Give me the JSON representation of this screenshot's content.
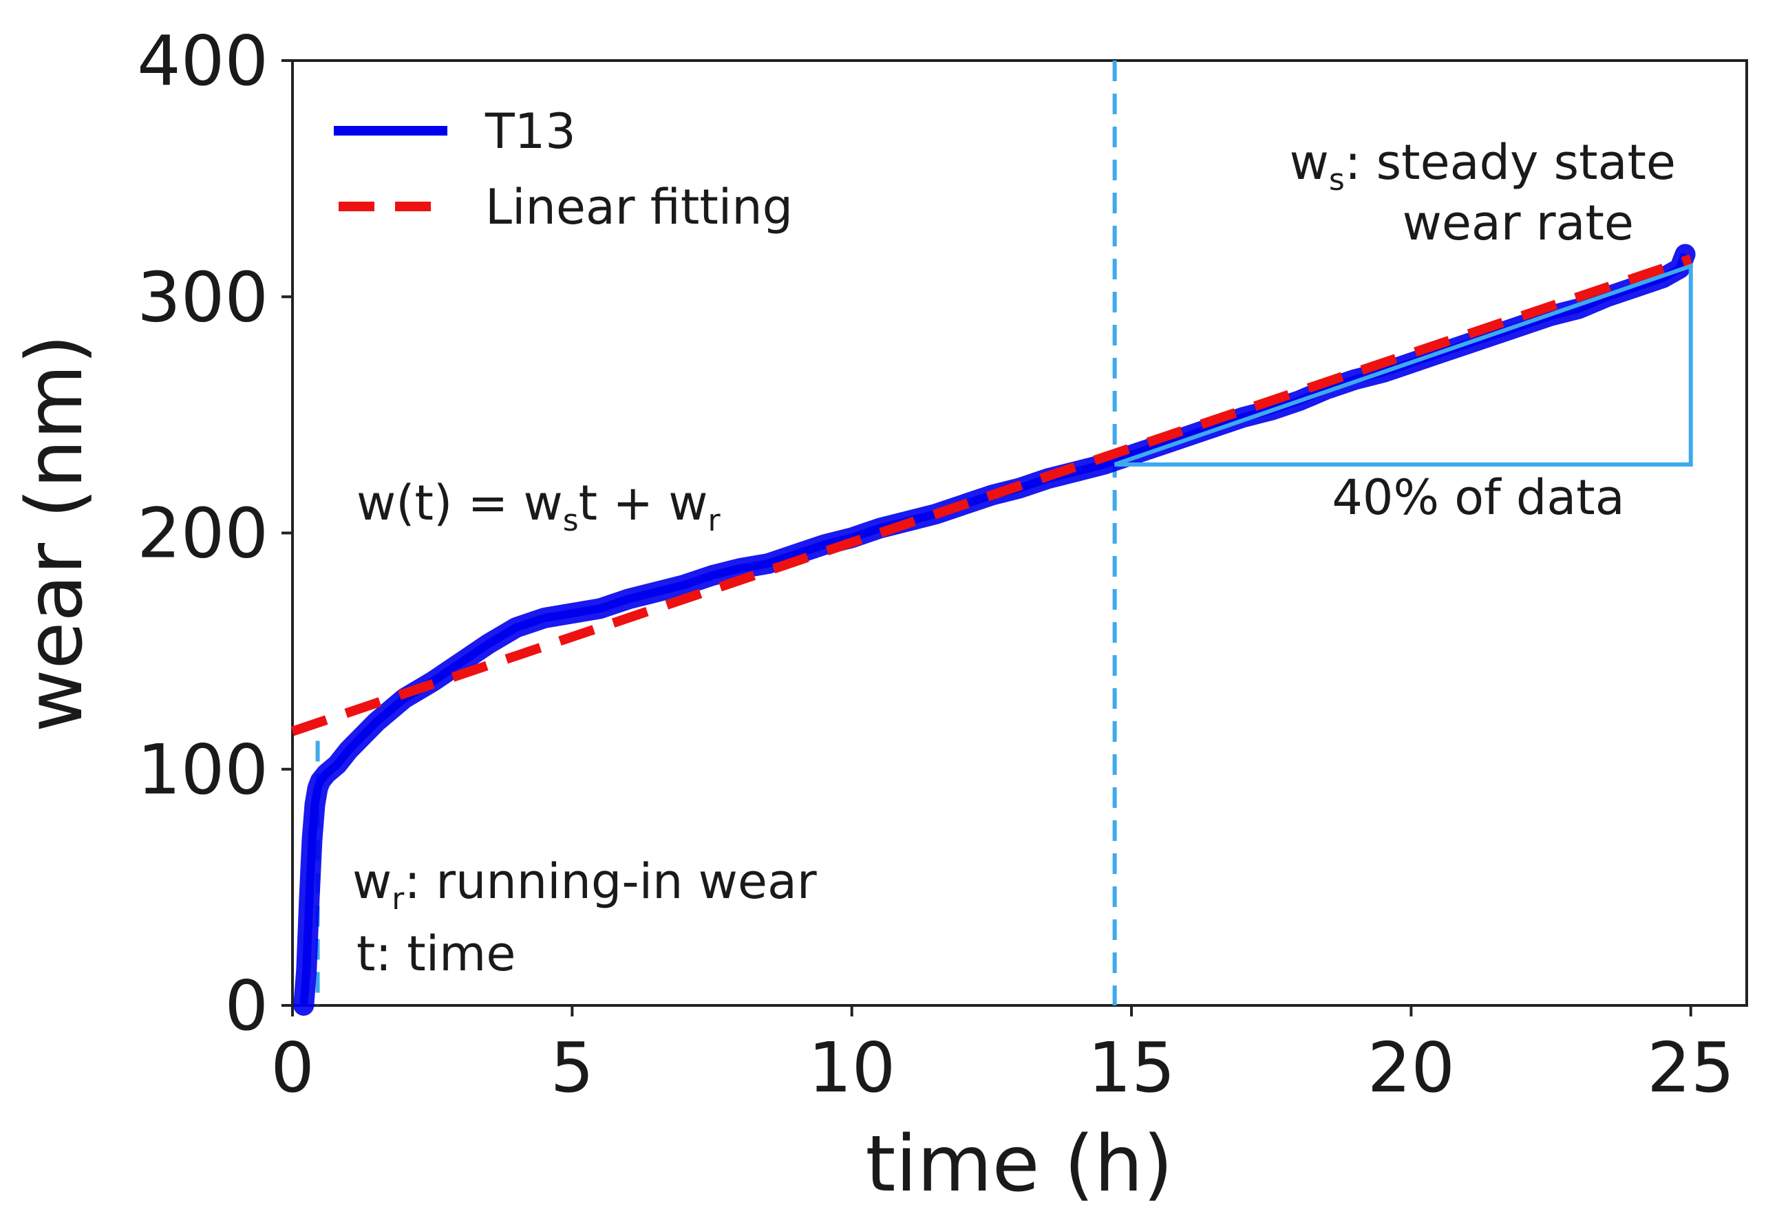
{
  "chart_data": {
    "type": "line",
    "xlabel": "time (h)",
    "ylabel": "wear (nm)",
    "xlim": [
      0,
      26
    ],
    "ylim": [
      0,
      400
    ],
    "x_ticks": [
      0,
      5,
      10,
      15,
      20,
      25
    ],
    "y_ticks": [
      0,
      100,
      200,
      300,
      400
    ],
    "grid": false,
    "legend_position": "top-left",
    "series": [
      {
        "name": "T13",
        "style": "solid",
        "color": "#0000ee",
        "x": [
          0.2,
          0.25,
          0.3,
          0.35,
          0.4,
          0.45,
          0.5,
          0.6,
          0.8,
          1.0,
          1.5,
          2.0,
          2.5,
          3.0,
          3.5,
          4.0,
          4.5,
          5.0,
          5.5,
          6.0,
          6.5,
          7.0,
          7.5,
          8.0,
          8.5,
          9.0,
          9.5,
          10.0,
          10.5,
          11.0,
          11.5,
          12.0,
          12.5,
          13.0,
          13.5,
          14.0,
          14.5,
          15.0,
          15.5,
          16.0,
          16.5,
          17.0,
          17.5,
          18.0,
          18.5,
          19.0,
          19.5,
          20.0,
          20.5,
          21.0,
          21.5,
          22.0,
          22.5,
          23.0,
          23.5,
          24.0,
          24.5,
          24.8,
          24.9
        ],
        "y": [
          0,
          15,
          45,
          70,
          85,
          92,
          95,
          98,
          102,
          108,
          120,
          130,
          137,
          145,
          153,
          160,
          164,
          166,
          168,
          172,
          175,
          178,
          182,
          185,
          187,
          191,
          195,
          198,
          202,
          205,
          208,
          212,
          216,
          219,
          223,
          226,
          229,
          233,
          237,
          241,
          245,
          249,
          252,
          256,
          261,
          265,
          268,
          272,
          276,
          280,
          284,
          288,
          292,
          295,
          300,
          304,
          308,
          312,
          318
        ]
      },
      {
        "name": "Linear fitting",
        "style": "dashed",
        "color": "#ee1111",
        "x": [
          0,
          25
        ],
        "y": [
          116,
          316
        ]
      }
    ],
    "guides": [
      {
        "kind": "vline",
        "x": 0.45,
        "y_from": 0,
        "y_to": 112,
        "color": "#3daaee",
        "style": "dashed"
      },
      {
        "kind": "vline",
        "x": 14.7,
        "y_from": 0,
        "y_to": 400,
        "color": "#3daaee",
        "style": "dashed"
      }
    ],
    "slope_triangle": {
      "color": "#3daaee",
      "x_start": 14.7,
      "x_end": 25.0,
      "y_low": 229,
      "y_high": 313,
      "label": "40% of data"
    },
    "annotations": {
      "steady_state": {
        "symbol": "w",
        "subscript": "s",
        "line1": ": steady state",
        "line2": "wear rate"
      },
      "equation": {
        "prefix": "w(t) = w",
        "sub_s": "s",
        "middle": "t + w",
        "sub_r": "r"
      },
      "running_in": {
        "symbol": "w",
        "subscript": "r",
        "text": ": running-in wear"
      },
      "time_def": "t: time"
    }
  }
}
